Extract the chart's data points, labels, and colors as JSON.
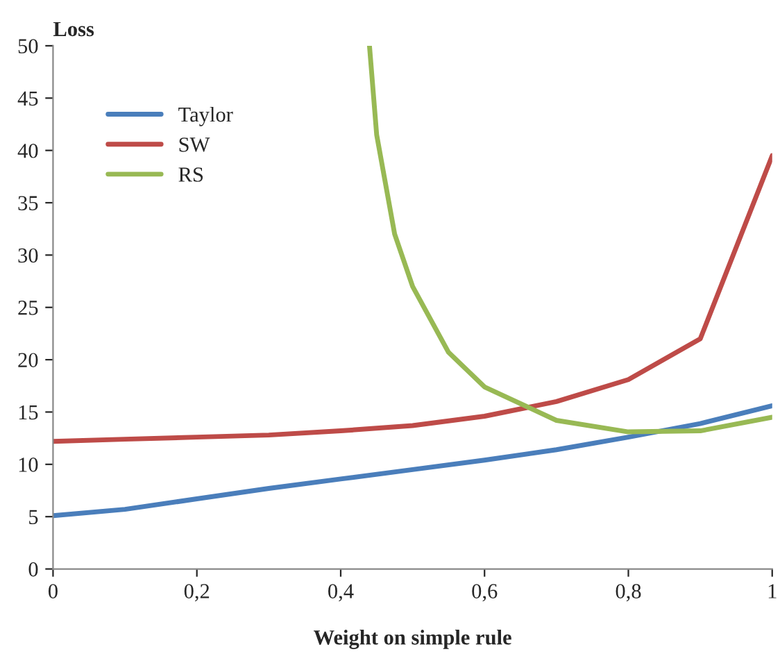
{
  "chart_data": {
    "type": "line",
    "xlabel": "Weight on simple rule",
    "ylabel": "Loss",
    "xlim": [
      0,
      1
    ],
    "xticks": [
      0,
      {
        "value": 0.2,
        "label": "0,2"
      },
      {
        "value": 0.4,
        "label": "0,4"
      },
      {
        "value": 0.6,
        "label": "0,6"
      },
      {
        "value": 0.8,
        "label": "0,8"
      },
      1
    ],
    "ylim": [
      0,
      50
    ],
    "yticks": [
      0,
      5,
      10,
      15,
      20,
      25,
      30,
      35,
      40,
      45,
      50
    ],
    "grid": false,
    "legend": "top left",
    "marker": "none",
    "line_style": "solid",
    "series": [
      {
        "name": "Taylor",
        "color": "#4a7ebb",
        "x": [
          0,
          0.1,
          0.2,
          0.3,
          0.4,
          0.5,
          0.6,
          0.7,
          0.8,
          0.9,
          1
        ],
        "values": [
          5.1,
          5.7,
          6.7,
          7.7,
          8.6,
          9.5,
          10.4,
          11.4,
          12.6,
          13.9,
          15.6
        ]
      },
      {
        "name": "SW",
        "color": "#be4b48",
        "x": [
          0,
          0.1,
          0.2,
          0.3,
          0.4,
          0.5,
          0.6,
          0.7,
          0.8,
          0.9,
          1
        ],
        "values": [
          12.2,
          12.4,
          12.6,
          12.8,
          13.2,
          13.7,
          14.6,
          16,
          18.1,
          22,
          39.5
        ]
      },
      {
        "name": "RS",
        "color": "#98b954",
        "x": [
          0.44,
          0.45,
          0.475,
          0.5,
          0.55,
          0.6,
          0.7,
          0.8,
          0.9,
          1
        ],
        "values": [
          50,
          41.5,
          32,
          27,
          20.7,
          17.4,
          14.2,
          13.1,
          13.2,
          14.5
        ]
      }
    ]
  }
}
